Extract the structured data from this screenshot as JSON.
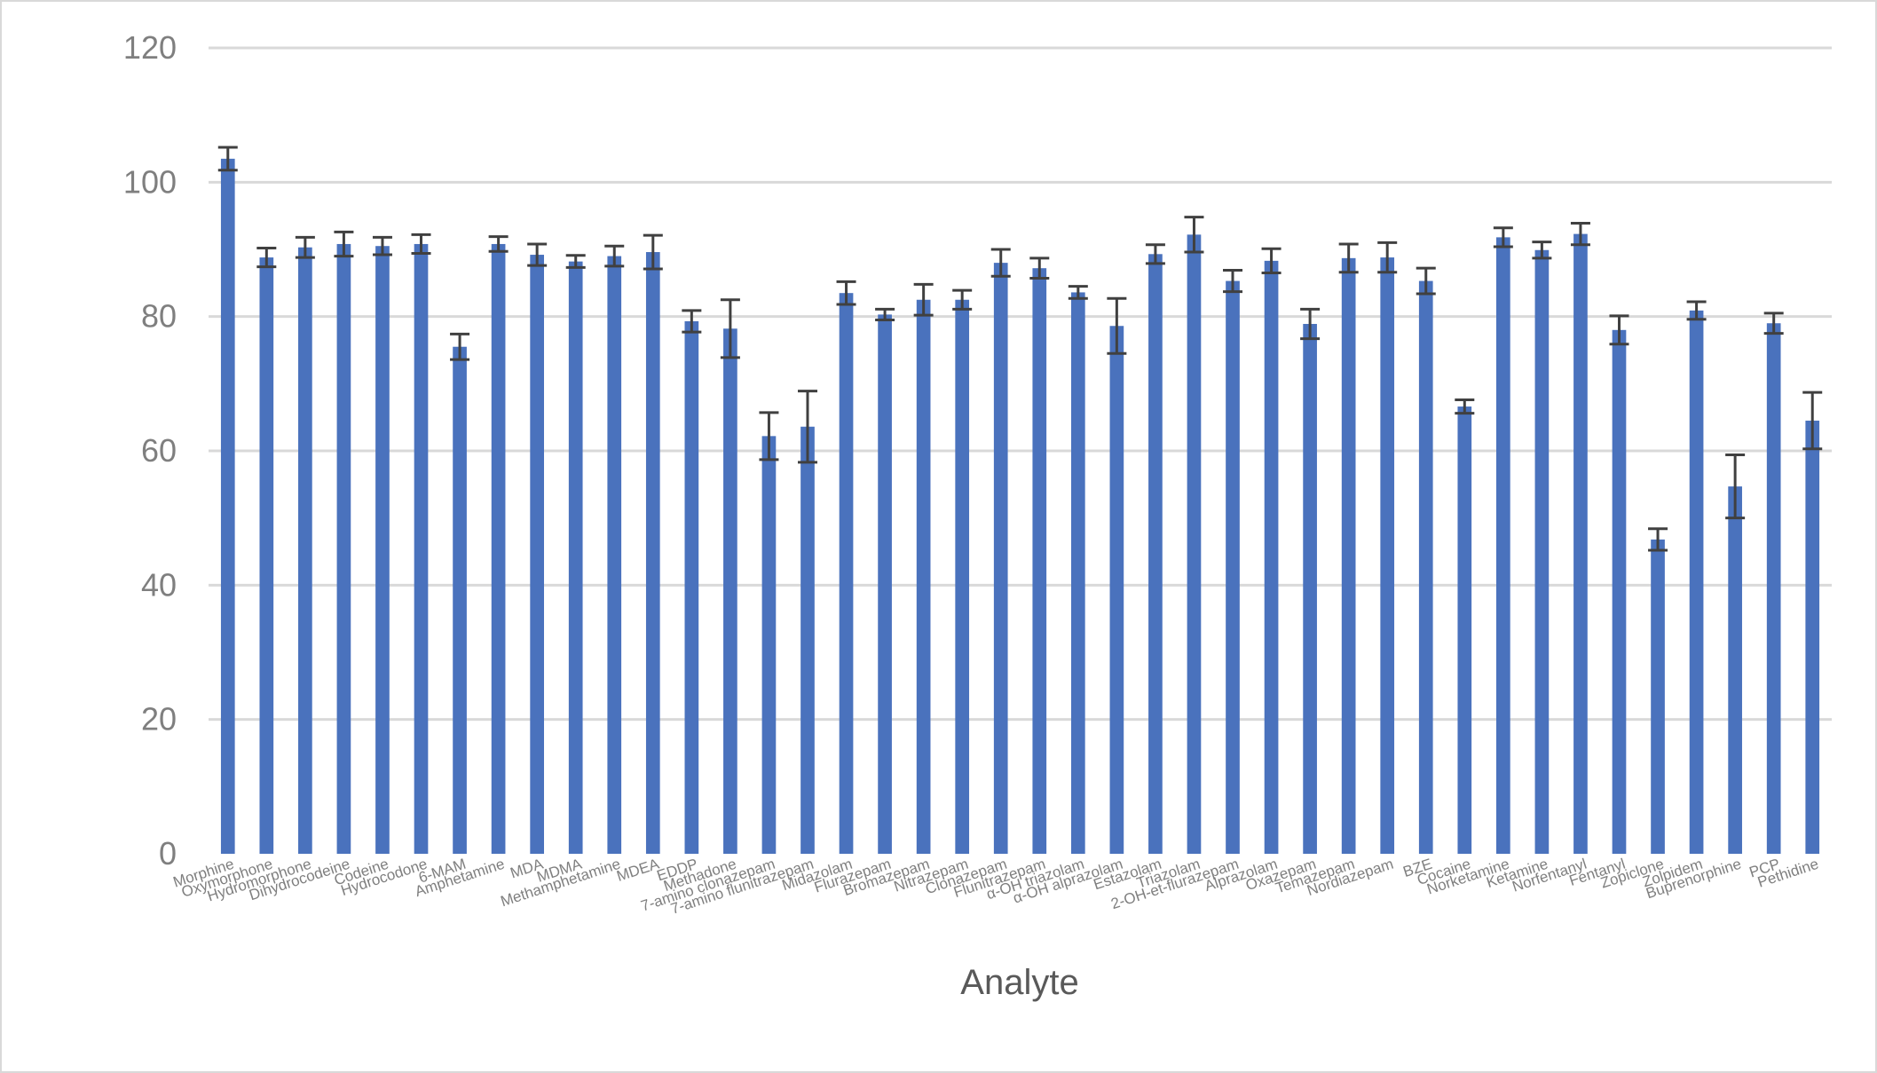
{
  "chart_data": {
    "type": "bar",
    "xlabel": "Analyte",
    "ylabel": "",
    "ylim": [
      0,
      120
    ],
    "yticks": [
      0,
      20,
      40,
      60,
      80,
      100,
      120
    ],
    "grid": true,
    "legend": "none",
    "colors": {
      "bar": "#4a72bd",
      "error_bar": "#404040",
      "grid": "#d9d9d9",
      "text": "#7f7f7f"
    },
    "categories": [
      "Morphine",
      "Oxymorphone",
      "Hydromorphone",
      "Dihydrocodeine",
      "Codeine",
      "Hydrocodone",
      "6-MAM",
      "Amphetamine",
      "MDA",
      "MDMA",
      "Methamphetamine",
      "MDEA",
      "EDDP",
      "Methadone",
      "7-amino clonazepam",
      "7-amino flunitrazepam",
      "Midazolam",
      "Flurazepam",
      "Bromazepam",
      "Nitrazepam",
      "Clonazepam",
      "Flunitrazepam",
      "α-OH triazolam",
      "α-OH alprazolam",
      "Estazolam",
      "Triazolam",
      "2-OH-et-flurazepam",
      "Alprazolam",
      "Oxazepam",
      "Temazepam",
      "Nordiazepam",
      "BZE",
      "Cocaine",
      "Norketamine",
      "Ketamine",
      "Norfentanyl",
      "Fentanyl",
      "Zopiclone",
      "Zolpidem",
      "Buprenorphine",
      "PCP",
      "Pethidine"
    ],
    "values": [
      103.5,
      88.8,
      90.3,
      90.8,
      90.5,
      90.8,
      75.5,
      90.8,
      89.2,
      88.2,
      89.0,
      89.6,
      79.3,
      78.2,
      62.2,
      63.6,
      83.5,
      80.3,
      82.5,
      82.5,
      88.0,
      87.2,
      83.6,
      78.6,
      89.3,
      92.2,
      85.3,
      88.3,
      78.9,
      88.7,
      88.8,
      85.3,
      66.6,
      91.8,
      89.9,
      92.3,
      78.0,
      46.8,
      80.9,
      54.7,
      79.0,
      64.5
    ],
    "errors": [
      1.7,
      1.4,
      1.5,
      1.8,
      1.3,
      1.4,
      1.9,
      1.1,
      1.6,
      0.9,
      1.5,
      2.5,
      1.6,
      4.3,
      3.5,
      5.3,
      1.7,
      0.8,
      2.3,
      1.4,
      2.0,
      1.5,
      0.9,
      4.1,
      1.4,
      2.6,
      1.6,
      1.8,
      2.2,
      2.1,
      2.2,
      1.9,
      1.0,
      1.4,
      1.2,
      1.6,
      2.1,
      1.6,
      1.3,
      4.7,
      1.5,
      4.2
    ]
  }
}
